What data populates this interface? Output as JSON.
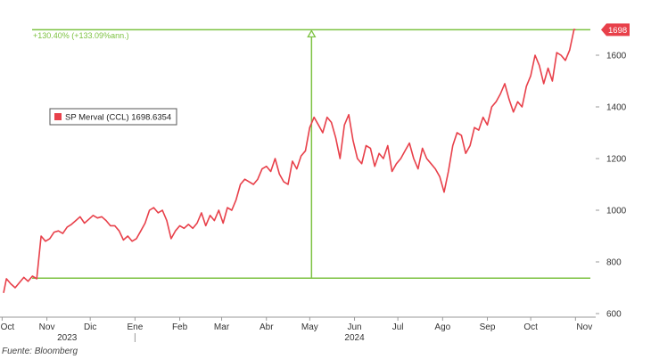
{
  "source": "Fuente: Bloomberg",
  "chart_data": {
    "type": "line",
    "legend_position": "top-left",
    "grid": false,
    "ylim": [
      600,
      1700
    ],
    "yticks": [
      600,
      800,
      1000,
      1200,
      1400,
      1600
    ],
    "xlim": [
      "2023-10-02",
      "2024-11-15"
    ],
    "month_ticks": [
      {
        "label": "Oct",
        "date": "2023-10-01"
      },
      {
        "label": "Nov",
        "date": "2023-11-01"
      },
      {
        "label": "Dic",
        "date": "2023-12-01"
      },
      {
        "label": "Ene",
        "date": "2024-01-01"
      },
      {
        "label": "Feb",
        "date": "2024-02-01"
      },
      {
        "label": "Mar",
        "date": "2024-03-01"
      },
      {
        "label": "Abr",
        "date": "2024-04-01"
      },
      {
        "label": "May",
        "date": "2024-05-01"
      },
      {
        "label": "Jun",
        "date": "2024-06-01"
      },
      {
        "label": "Jul",
        "date": "2024-07-01"
      },
      {
        "label": "Ago",
        "date": "2024-08-01"
      },
      {
        "label": "Sep",
        "date": "2024-09-01"
      },
      {
        "label": "Oct",
        "date": "2024-10-01"
      },
      {
        "label": "Nov",
        "date": "2024-11-01"
      }
    ],
    "years": [
      {
        "label": "2023",
        "date": "2023-11-15"
      },
      {
        "label": "2024",
        "date": "2024-06-01"
      }
    ],
    "year_separator": "2024-01-01",
    "series": [
      {
        "name": "SP Merval (CCL)",
        "last_value": "1698.6354",
        "last_label": "1698",
        "color": "#e8404a",
        "x": [
          "2023-10-02",
          "2023-10-04",
          "2023-10-07",
          "2023-10-10",
          "2023-10-13",
          "2023-10-16",
          "2023-10-19",
          "2023-10-22",
          "2023-10-25",
          "2023-10-28",
          "2023-10-31",
          "2023-11-03",
          "2023-11-06",
          "2023-11-09",
          "2023-11-12",
          "2023-11-15",
          "2023-11-18",
          "2023-11-21",
          "2023-11-24",
          "2023-11-27",
          "2023-11-30",
          "2023-12-03",
          "2023-12-06",
          "2023-12-09",
          "2023-12-12",
          "2023-12-15",
          "2023-12-18",
          "2023-12-21",
          "2023-12-24",
          "2023-12-27",
          "2023-12-30",
          "2024-01-02",
          "2024-01-05",
          "2024-01-08",
          "2024-01-11",
          "2024-01-14",
          "2024-01-17",
          "2024-01-20",
          "2024-01-23",
          "2024-01-26",
          "2024-01-29",
          "2024-02-01",
          "2024-02-04",
          "2024-02-07",
          "2024-02-10",
          "2024-02-13",
          "2024-02-16",
          "2024-02-19",
          "2024-02-22",
          "2024-02-25",
          "2024-02-28",
          "2024-03-02",
          "2024-03-05",
          "2024-03-08",
          "2024-03-11",
          "2024-03-14",
          "2024-03-17",
          "2024-03-20",
          "2024-03-23",
          "2024-03-26",
          "2024-03-29",
          "2024-04-01",
          "2024-04-04",
          "2024-04-07",
          "2024-04-10",
          "2024-04-13",
          "2024-04-16",
          "2024-04-19",
          "2024-04-22",
          "2024-04-25",
          "2024-04-28",
          "2024-05-01",
          "2024-05-04",
          "2024-05-07",
          "2024-05-10",
          "2024-05-13",
          "2024-05-16",
          "2024-05-19",
          "2024-05-22",
          "2024-05-25",
          "2024-05-28",
          "2024-05-31",
          "2024-06-03",
          "2024-06-06",
          "2024-06-09",
          "2024-06-12",
          "2024-06-15",
          "2024-06-18",
          "2024-06-21",
          "2024-06-24",
          "2024-06-27",
          "2024-06-30",
          "2024-07-03",
          "2024-07-06",
          "2024-07-09",
          "2024-07-12",
          "2024-07-15",
          "2024-07-18",
          "2024-07-21",
          "2024-07-24",
          "2024-07-27",
          "2024-07-30",
          "2024-08-02",
          "2024-08-05",
          "2024-08-08",
          "2024-08-11",
          "2024-08-14",
          "2024-08-17",
          "2024-08-20",
          "2024-08-23",
          "2024-08-26",
          "2024-08-29",
          "2024-09-01",
          "2024-09-04",
          "2024-09-07",
          "2024-09-10",
          "2024-09-13",
          "2024-09-16",
          "2024-09-19",
          "2024-09-22",
          "2024-09-25",
          "2024-09-28",
          "2024-10-01",
          "2024-10-04",
          "2024-10-07",
          "2024-10-10",
          "2024-10-13",
          "2024-10-16",
          "2024-10-19",
          "2024-10-22",
          "2024-10-25",
          "2024-10-28",
          "2024-10-31",
          "2024-11-01"
        ],
        "y": [
          680,
          735,
          715,
          700,
          720,
          740,
          725,
          745,
          735,
          900,
          880,
          890,
          915,
          920,
          910,
          935,
          945,
          960,
          975,
          950,
          965,
          980,
          970,
          975,
          960,
          940,
          940,
          920,
          885,
          900,
          880,
          890,
          920,
          950,
          1000,
          1010,
          990,
          1000,
          960,
          890,
          920,
          940,
          930,
          945,
          930,
          950,
          990,
          940,
          980,
          960,
          1000,
          950,
          1010,
          1000,
          1040,
          1100,
          1120,
          1110,
          1100,
          1120,
          1160,
          1170,
          1150,
          1200,
          1140,
          1110,
          1100,
          1190,
          1160,
          1210,
          1230,
          1320,
          1360,
          1330,
          1300,
          1360,
          1340,
          1280,
          1200,
          1330,
          1370,
          1270,
          1200,
          1180,
          1250,
          1240,
          1170,
          1220,
          1200,
          1250,
          1150,
          1180,
          1200,
          1230,
          1260,
          1200,
          1160,
          1240,
          1200,
          1180,
          1160,
          1130,
          1070,
          1150,
          1250,
          1300,
          1290,
          1220,
          1250,
          1320,
          1310,
          1360,
          1330,
          1400,
          1420,
          1450,
          1490,
          1430,
          1380,
          1420,
          1400,
          1480,
          1520,
          1600,
          1560,
          1490,
          1550,
          1500,
          1610,
          1600,
          1580,
          1620,
          1700,
          1698.6
        ]
      }
    ],
    "annotation": {
      "label": "+130.40% (+133.09%ann.)",
      "from_value": 737,
      "to_value": 1698.6,
      "arrow_date": "2024-05-01",
      "color": "#7dc242"
    }
  }
}
